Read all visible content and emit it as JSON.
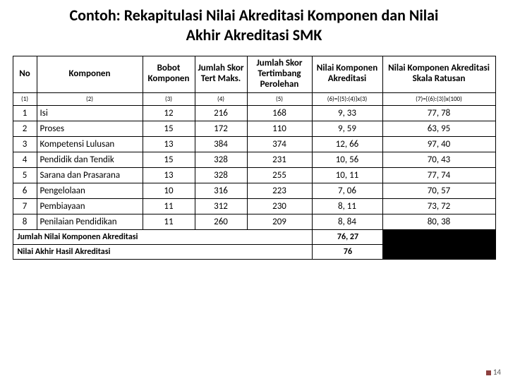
{
  "title_line1": "Contoh: Rekapitulasi Nilai Akreditasi Komponen dan Nilai",
  "title_line2": "Akhir Akreditasi SMK",
  "columns": {
    "no": "No",
    "komponen": "Komponen",
    "bobot": "Bobot Komponen",
    "jumlah_skor_maks": "Jumlah Skor Tert Maks.",
    "jumlah_skor_perolehan": "Jumlah Skor Tertimbang Perolehan",
    "nilai_komponen": "Nilai Komponen Akreditasi",
    "nilai_ratusan": "Nilai Komponen Akreditasi Skala Ratusan"
  },
  "subheader": {
    "c1": "(1)",
    "c2": "(2)",
    "c3": "(3)",
    "c4": "(4)",
    "c5": "(5)",
    "c6": "(6)={(5):(4)}x(3)",
    "c7": "(7)={(6):(3)}x(100)"
  },
  "rows": [
    {
      "no": "1",
      "komponen": "Isi",
      "bobot": "12",
      "maks": "216",
      "peroleh": "168",
      "nilai": "9, 33",
      "ratus": "77, 78"
    },
    {
      "no": "2",
      "komponen": "Proses",
      "bobot": "15",
      "maks": "172",
      "peroleh": "110",
      "nilai": "9, 59",
      "ratus": "63, 95"
    },
    {
      "no": "3",
      "komponen": "Kompetensi Lulusan",
      "bobot": "13",
      "maks": "384",
      "peroleh": "374",
      "nilai": "12, 66",
      "ratus": "97, 40"
    },
    {
      "no": "4",
      "komponen": "Pendidik dan Tendik",
      "bobot": "15",
      "maks": "328",
      "peroleh": "231",
      "nilai": "10, 56",
      "ratus": "70, 43"
    },
    {
      "no": "5",
      "komponen": "Sarana dan Prasarana",
      "bobot": "13",
      "maks": "328",
      "peroleh": "255",
      "nilai": "10, 11",
      "ratus": "77, 74"
    },
    {
      "no": "6",
      "komponen": "Pengelolaan",
      "bobot": "10",
      "maks": "316",
      "peroleh": "223",
      "nilai": "7, 06",
      "ratus": "70, 57"
    },
    {
      "no": "7",
      "komponen": "Pembiayaan",
      "bobot": "11",
      "maks": "312",
      "peroleh": "230",
      "nilai": "8, 11",
      "ratus": "73, 72"
    },
    {
      "no": "8",
      "komponen": "Penilaian Pendidikan",
      "bobot": "11",
      "maks": "260",
      "peroleh": "209",
      "nilai": "8, 84",
      "ratus": "80, 38"
    }
  ],
  "summary": {
    "jumlah_label": "Jumlah Nilai Komponen Akreditasi",
    "jumlah_value": "76, 27",
    "akhir_label": "Nilai Akhir Hasil Akreditasi",
    "akhir_value": "76"
  },
  "page_number": "14",
  "col_widths": {
    "no": 34,
    "komponen": 150,
    "bobot": 74,
    "maks": 74,
    "peroleh": 92,
    "nilai": 100,
    "ratus": 160
  }
}
